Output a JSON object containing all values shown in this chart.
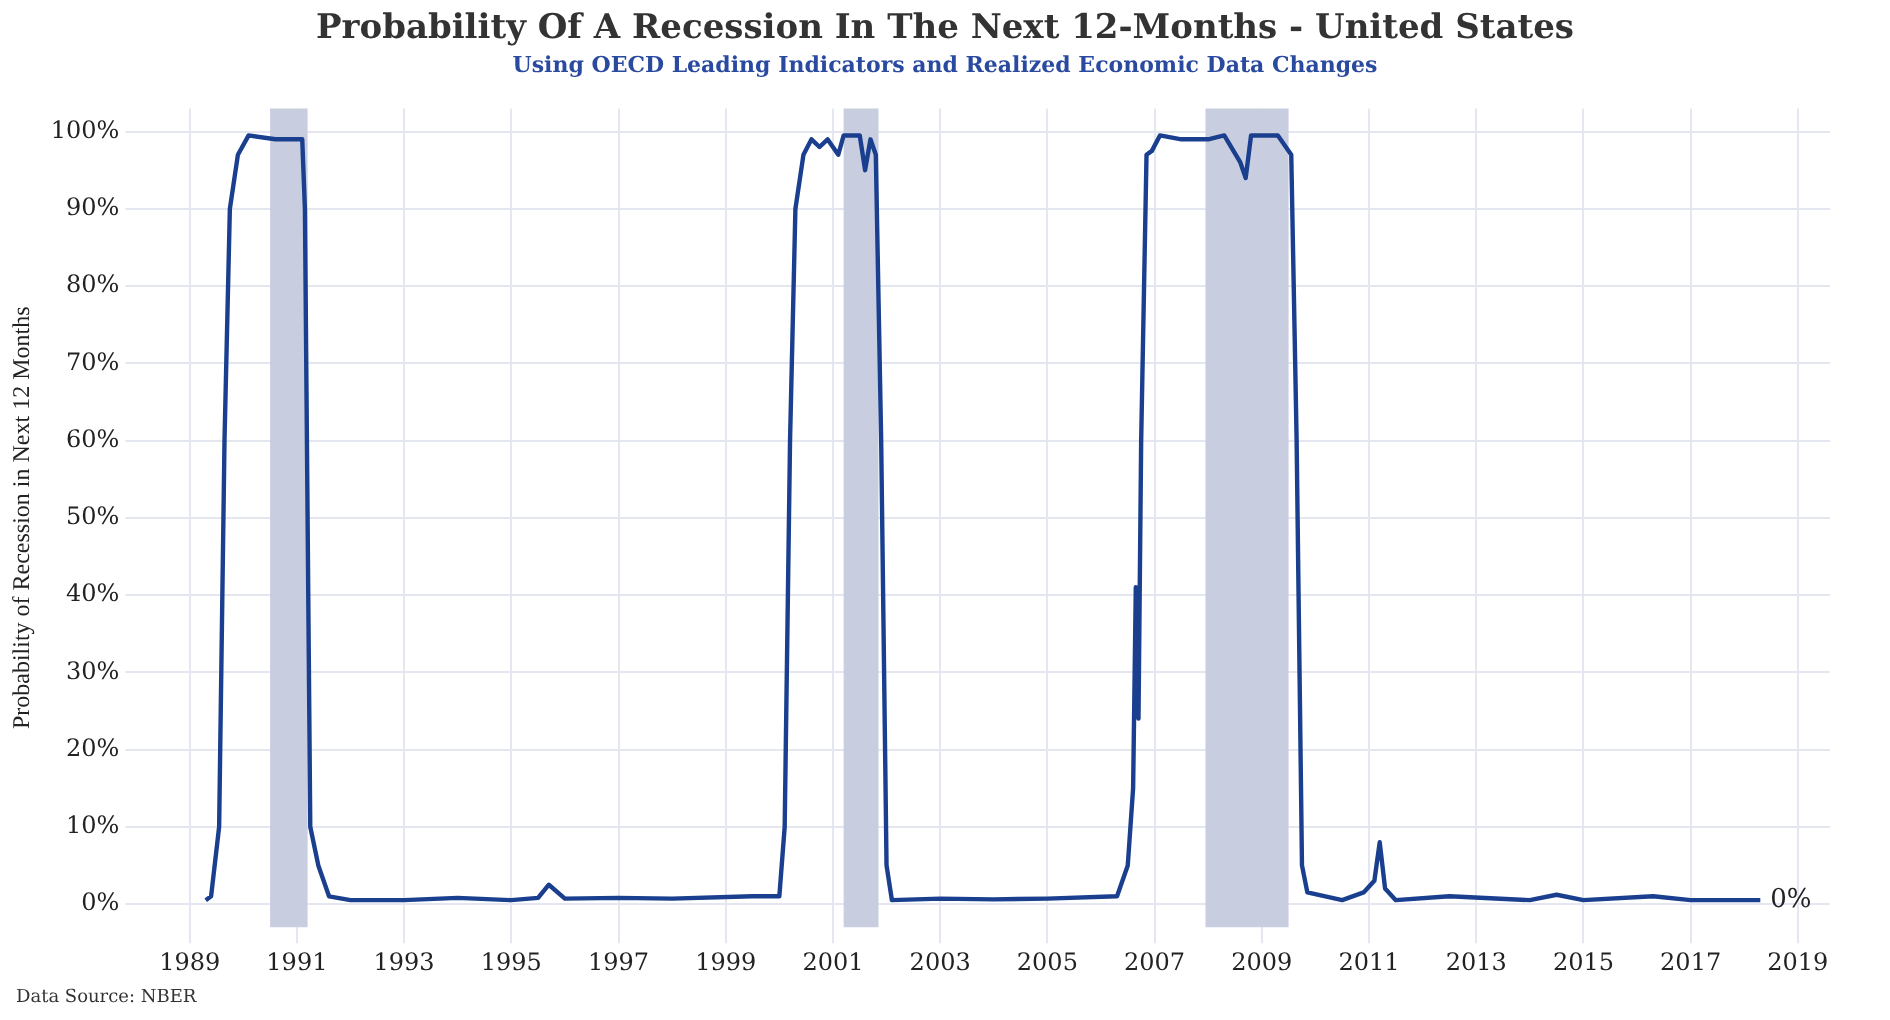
{
  "chart_data": {
    "type": "line",
    "title": "Probability Of A Recession In The Next 12-Months - United States",
    "subtitle": "Using OECD Leading Indicators and Realized Economic Data Changes",
    "ylabel": "Probability of Recession in Next 12 Months",
    "x": [
      1989.3,
      1989.4,
      1989.55,
      1989.65,
      1989.75,
      1989.9,
      1990.1,
      1990.6,
      1991.1,
      1991.15,
      1991.25,
      1991.4,
      1991.6,
      1992,
      1993,
      1994,
      1995,
      1995.5,
      1995.7,
      1996,
      1997,
      1998,
      1999.5,
      2000,
      2000.1,
      2000.2,
      2000.3,
      2000.45,
      2000.6,
      2000.75,
      2000.9,
      2001.1,
      2001.2,
      2001.5,
      2001.6,
      2001.7,
      2001.8,
      2001.9,
      2002,
      2002.1,
      2003,
      2004,
      2005,
      2006.3,
      2006.5,
      2006.6,
      2006.65,
      2006.7,
      2006.75,
      2006.85,
      2006.95,
      2007.1,
      2007.5,
      2008,
      2008.3,
      2008.6,
      2008.7,
      2008.8,
      2009.3,
      2009.55,
      2009.65,
      2009.75,
      2009.85,
      2010.5,
      2010.9,
      2011.1,
      2011.2,
      2011.3,
      2011.5,
      2012.5,
      2014,
      2014.5,
      2015,
      2016.3,
      2017,
      2018.3
    ],
    "series": [
      {
        "color": "#1a3f8f",
        "values": [
          0.5,
          1,
          10,
          60,
          90,
          97,
          99.5,
          99,
          99,
          90,
          10,
          5,
          1,
          0.5,
          0.5,
          0.8,
          0.5,
          0.8,
          2.5,
          0.7,
          0.8,
          0.7,
          1,
          1,
          10,
          60,
          90,
          97,
          99,
          98,
          99,
          97,
          99.5,
          99.5,
          95,
          99,
          97,
          60,
          5,
          0.5,
          0.7,
          0.6,
          0.7,
          1,
          5,
          15,
          41,
          24,
          60,
          97,
          97.5,
          99.5,
          99,
          99,
          99.5,
          96,
          94,
          99.5,
          99.5,
          97,
          60,
          5,
          1.5,
          0.5,
          1.5,
          3,
          8,
          2,
          0.5,
          1,
          0.5,
          1.2,
          0.5,
          1,
          0.5,
          0.5
        ]
      }
    ],
    "xlim": [
      1988.1,
      2019.6
    ],
    "xticks": [
      1989,
      1991,
      1993,
      1995,
      1997,
      1999,
      2001,
      2003,
      2005,
      2007,
      2009,
      2011,
      2013,
      2015,
      2017,
      2019
    ],
    "ylim": [
      -3,
      103
    ],
    "yticks": [
      {
        "value": 0,
        "label": "0%"
      },
      {
        "value": 10,
        "label": "10%"
      },
      {
        "value": 20,
        "label": "20%"
      },
      {
        "value": 30,
        "label": "30%"
      },
      {
        "value": 40,
        "label": "40%"
      },
      {
        "value": 50,
        "label": "50%"
      },
      {
        "value": 60,
        "label": "60%"
      },
      {
        "value": 70,
        "label": "70%"
      },
      {
        "value": 80,
        "label": "80%"
      },
      {
        "value": 90,
        "label": "90%"
      },
      {
        "value": 100,
        "label": "100%"
      }
    ],
    "bands": [
      {
        "axis": "x",
        "from": 1990.5,
        "to": 1991.2,
        "color": "#c9cde0"
      },
      {
        "axis": "x",
        "from": 2001.2,
        "to": 2001.85,
        "color": "#c9cde0"
      },
      {
        "axis": "x",
        "from": 2007.95,
        "to": 2009.5,
        "color": "#c9cde0"
      }
    ],
    "annotations": [
      {
        "text": "0%",
        "x": 2018.3,
        "y": 0.5
      },
      "Data Source: NBER"
    ],
    "grid": true,
    "legend": false,
    "marker": "none",
    "line_style": "solid"
  }
}
